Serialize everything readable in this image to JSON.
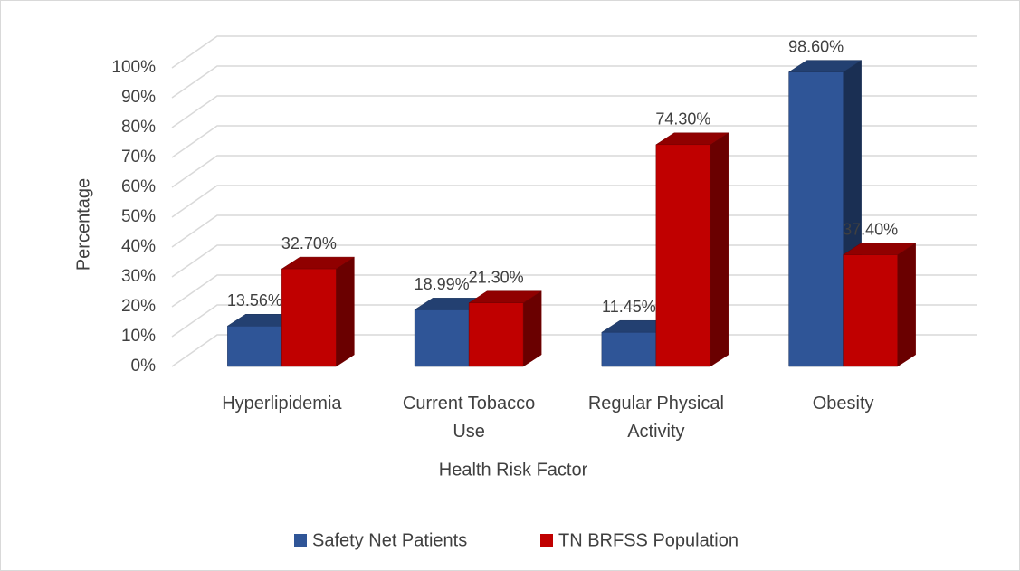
{
  "chart_data": {
    "type": "bar3d",
    "categories": [
      "Hyperlipidemia",
      "Current Tobacco Use",
      "Regular Physical Activity",
      "Obesity"
    ],
    "series": [
      {
        "name": "Safety Net Patients",
        "color": "#2f5597",
        "values": [
          13.56,
          18.99,
          11.45,
          98.6
        ],
        "value_labels": [
          "13.56%",
          "18.99%",
          "11.45%",
          "98.60%"
        ]
      },
      {
        "name": "TN BRFSS Population",
        "color": "#c00000",
        "values": [
          32.7,
          21.3,
          74.3,
          37.4
        ],
        "value_labels": [
          "32.70%",
          "21.30%",
          "74.30%",
          "37.40%"
        ]
      }
    ],
    "ylim": [
      0,
      100
    ],
    "yticks": [
      {
        "value": 0,
        "label": "0%"
      },
      {
        "value": 10,
        "label": "10%"
      },
      {
        "value": 20,
        "label": "20%"
      },
      {
        "value": 30,
        "label": "30%"
      },
      {
        "value": 40,
        "label": "40%"
      },
      {
        "value": 50,
        "label": "50%"
      },
      {
        "value": 60,
        "label": "60%"
      },
      {
        "value": 70,
        "label": "70%"
      },
      {
        "value": 80,
        "label": "80%"
      },
      {
        "value": 90,
        "label": "90%"
      },
      {
        "value": 100,
        "label": "100%"
      }
    ],
    "grid": true,
    "xlabel": "Health Risk Factor",
    "ylabel": "Percentage",
    "legend": "bottom"
  }
}
